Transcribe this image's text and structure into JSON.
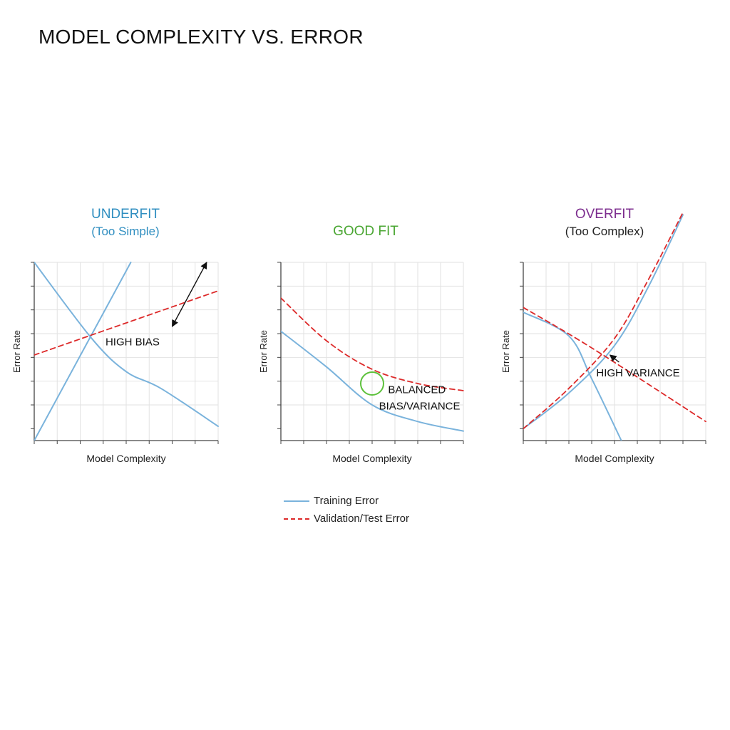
{
  "title": "MODEL COMPLEXITY VS. ERROR",
  "colors": {
    "training": "#7ab3dc",
    "validation": "#dd2a2a",
    "underfit": "#2f8ec0",
    "goodfit": "#4aa632",
    "overfit": "#7d2e8f",
    "circle": "#5cc13b"
  },
  "legend": {
    "training_label": "Training Error",
    "validation_label": "Validation/Test Error"
  },
  "chart_data": [
    {
      "type": "line",
      "title": "UNDERFIT",
      "subtitle": "(Too Simple)",
      "xlabel": "Model Complexity",
      "ylabel": "Error Rate",
      "xlim": [
        0,
        8
      ],
      "ylim": [
        0,
        7.5
      ],
      "grid": true,
      "series": [
        {
          "name": "Training Error",
          "x": [
            0,
            2.5,
            4,
            5.5,
            8
          ],
          "y": [
            7.5,
            4.3,
            2.9,
            2.2,
            0.6
          ],
          "style": "solid"
        },
        {
          "name": "Training Error",
          "x": [
            0,
            4.2
          ],
          "y": [
            0,
            7.5
          ],
          "style": "solid"
        },
        {
          "name": "Validation/Test Error",
          "x": [
            0,
            8
          ],
          "y": [
            3.6,
            6.3
          ],
          "style": "dashed"
        }
      ],
      "annotations": [
        {
          "text": "HIGH BIAS",
          "x": 3.1,
          "y": 4.0
        },
        {
          "text": "",
          "type": "double-arrow",
          "from": [
            6.0,
            4.8
          ],
          "to": [
            7.5,
            7.5
          ]
        }
      ]
    },
    {
      "type": "line",
      "title": "GOOD FIT",
      "subtitle": "",
      "xlabel": "Model Complexity",
      "ylabel": "Error Rate",
      "xlim": [
        0,
        8
      ],
      "ylim": [
        0,
        7.5
      ],
      "grid": true,
      "series": [
        {
          "name": "Training Error",
          "x": [
            0,
            2,
            4,
            6,
            8
          ],
          "y": [
            4.6,
            3.1,
            1.5,
            0.8,
            0.4
          ],
          "style": "solid"
        },
        {
          "name": "Validation/Test Error",
          "x": [
            0,
            2,
            4,
            6,
            8
          ],
          "y": [
            6.0,
            4.2,
            3.0,
            2.4,
            2.1
          ],
          "style": "dashed"
        }
      ],
      "annotations": [
        {
          "text": "BALANCED",
          "x": 4.7,
          "y": 2.0
        },
        {
          "text": "BIAS/VARIANCE",
          "x": 4.3,
          "y": 1.3
        },
        {
          "text": "",
          "type": "circle",
          "x": 4.0,
          "y": 2.4
        }
      ]
    },
    {
      "type": "line",
      "title": "OVERFIT",
      "subtitle": "(Too Complex)",
      "xlabel": "Model Complexity",
      "ylabel": "Error Rate",
      "xlim": [
        0,
        8
      ],
      "ylim": [
        0,
        7.5
      ],
      "grid": true,
      "series": [
        {
          "name": "Training Error",
          "x": [
            0,
            2,
            3,
            4.3
          ],
          "y": [
            5.4,
            4.4,
            2.6,
            0
          ],
          "style": "solid"
        },
        {
          "name": "Training Error",
          "x": [
            0,
            2,
            4,
            5.5,
            7
          ],
          "y": [
            0.5,
            2.0,
            4.0,
            6.5,
            9.5
          ],
          "style": "solid"
        },
        {
          "name": "Validation/Test Error",
          "x": [
            0,
            2,
            4,
            5.5,
            7
          ],
          "y": [
            0.5,
            2.2,
            4.3,
            6.8,
            9.6
          ],
          "style": "dashed"
        },
        {
          "name": "Validation/Test Error",
          "x": [
            0,
            3,
            8
          ],
          "y": [
            5.6,
            3.9,
            0.8
          ],
          "style": "dashed"
        }
      ],
      "annotations": [
        {
          "text": "HIGH VARIANCE",
          "x": 3.2,
          "y": 2.7
        },
        {
          "text": "",
          "type": "arrow",
          "from": [
            4.2,
            3.3
          ],
          "to": [
            3.8,
            3.6
          ]
        }
      ]
    }
  ]
}
